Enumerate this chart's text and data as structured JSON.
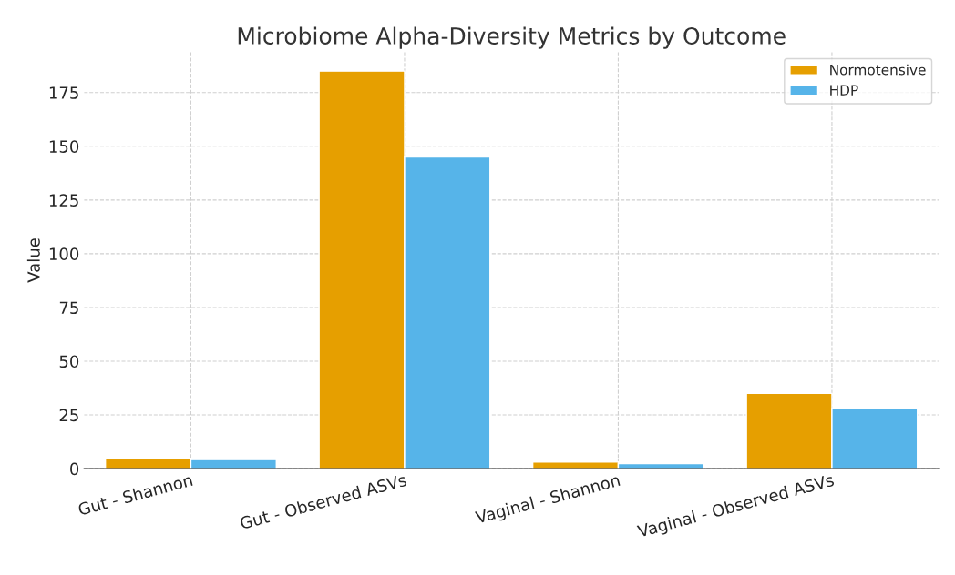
{
  "chart_data": {
    "type": "bar",
    "title": "Microbiome Alpha-Diversity Metrics by Outcome",
    "ylabel": "Value",
    "categories": [
      "Gut - Shannon",
      "Gut - Observed ASVs",
      "Vaginal - Shannon",
      "Vaginal - Observed ASVs"
    ],
    "series": [
      {
        "name": "Normotensive",
        "color": "#e69f00",
        "values": [
          4.8,
          185,
          3.1,
          35
        ]
      },
      {
        "name": "HDP",
        "color": "#56b4e9",
        "values": [
          4.2,
          145,
          2.3,
          28
        ]
      }
    ],
    "ylim": [
      0,
      194
    ],
    "yticks": [
      0,
      25,
      50,
      75,
      100,
      125,
      150,
      175
    ],
    "grid": true,
    "legend": "top right"
  }
}
